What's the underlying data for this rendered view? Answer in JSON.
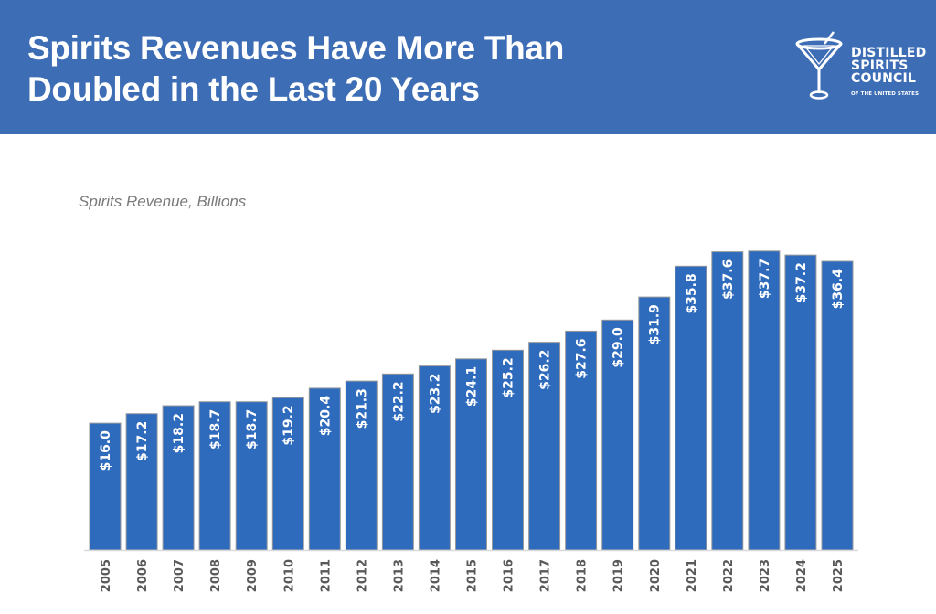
{
  "header": {
    "title_line1": "Spirits Revenues Have More Than",
    "title_line2": "Doubled in the Last 20 Years",
    "background_color": "#3d6db5"
  },
  "logo": {
    "icon": "martini-glass-icon",
    "line1": "DISTILLED",
    "line2": "SPIRITS",
    "line3": "COUNCIL",
    "sub": "OF THE UNITED STATES"
  },
  "chart_data": {
    "type": "bar",
    "title": "Spirits Revenues Have More Than Doubled in the Last 20 Years",
    "subtitle": "Spirits Revenue, Billions",
    "xlabel": "",
    "ylabel": "Spirits Revenue, Billions",
    "categories": [
      "2005",
      "2006",
      "2007",
      "2008",
      "2009",
      "2010",
      "2011",
      "2012",
      "2013",
      "2014",
      "2015",
      "2016",
      "2017",
      "2018",
      "2019",
      "2020",
      "2021",
      "2022",
      "2023",
      "2024",
      "2025"
    ],
    "values": [
      16.0,
      17.2,
      18.2,
      18.7,
      18.7,
      19.2,
      20.4,
      21.3,
      22.2,
      23.2,
      24.1,
      25.2,
      26.2,
      27.6,
      29.0,
      31.9,
      35.8,
      37.6,
      37.7,
      37.2,
      36.4
    ],
    "data_labels": [
      "$16.0",
      "$17.2",
      "$18.2",
      "$18.7",
      "$18.7",
      "$19.2",
      "$20.4",
      "$21.3",
      "$22.2",
      "$23.2",
      "$24.1",
      "$25.2",
      "$26.2",
      "$27.6",
      "$29.0",
      "$31.9",
      "$35.8",
      "$37.6",
      "$37.7",
      "$37.2",
      "$36.4"
    ],
    "ylim": [
      0,
      40
    ],
    "grid": false,
    "legend": "none",
    "bar_color": "#2f6bbd",
    "bar_edge_color": "#9a9a9a"
  }
}
